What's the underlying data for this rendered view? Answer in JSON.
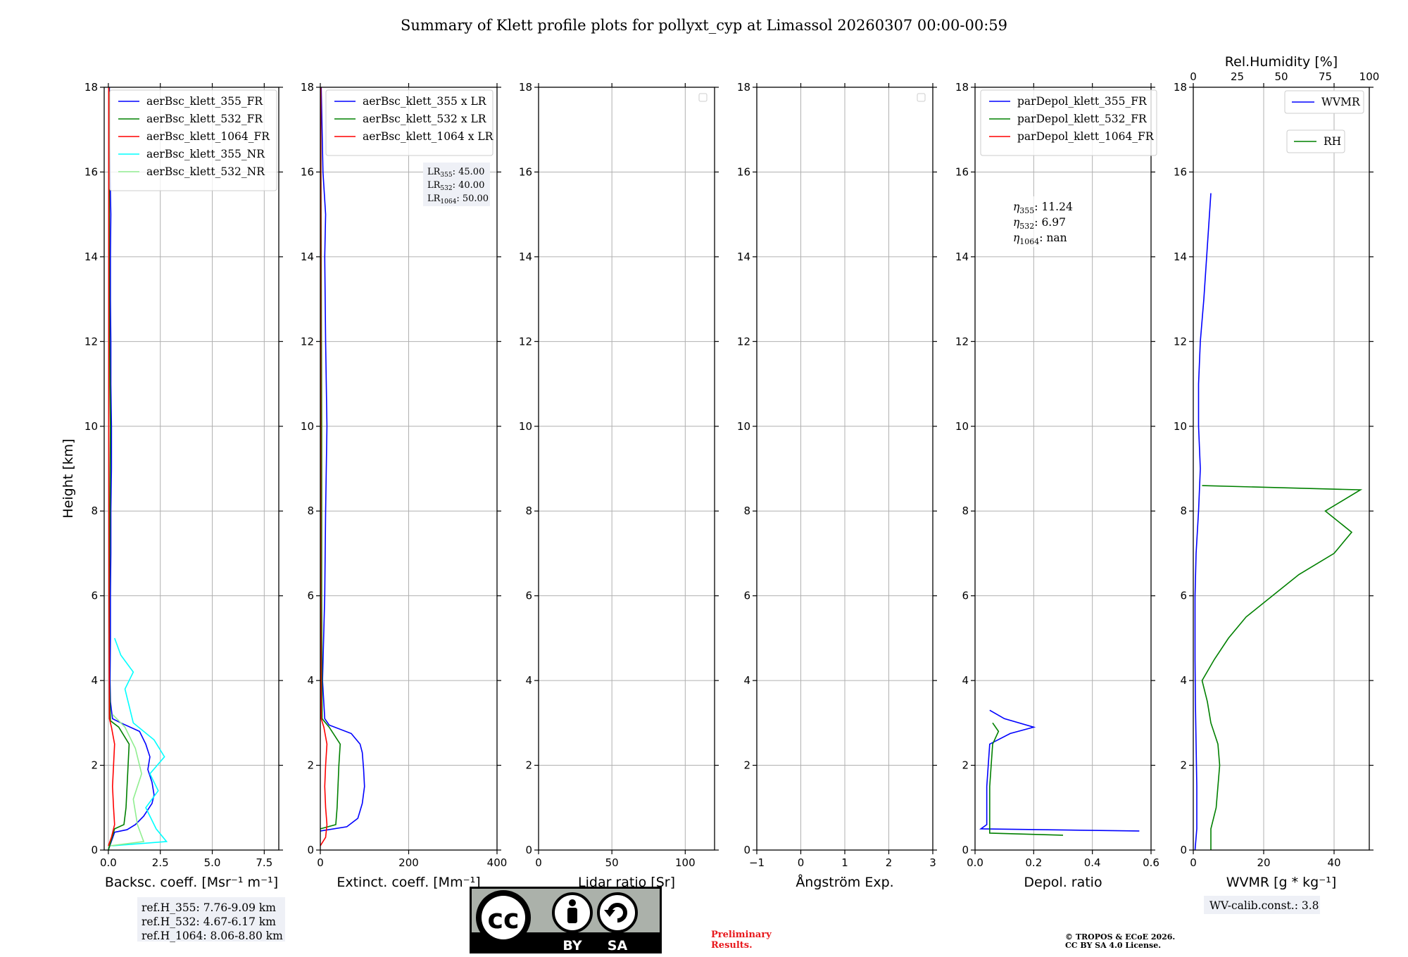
{
  "title": "Summary of Klett profile plots for pollyxt_cyp at Limassol 20260307 00:00-00:59",
  "colors": {
    "blue": "#0000ff",
    "green": "#008000",
    "red": "#ff0000",
    "cyan": "#00ffff",
    "lightgreen": "#90ee90",
    "grid": "#b0b0b0",
    "legendEdge": "#cccccc",
    "boxBg": "#eef0f6",
    "prelim": "#e8181c"
  },
  "y_axis": {
    "label": "Height [km]",
    "ylim": [
      0,
      18
    ],
    "ticks": [
      "0",
      "2",
      "4",
      "6",
      "8",
      "10",
      "12",
      "14",
      "16",
      "18"
    ]
  },
  "panels": [
    {
      "id": "backscatter",
      "xlabel": "Backsc. coeff. [Msr⁻¹ m⁻¹]",
      "xlim": [
        -0.2,
        8.2
      ],
      "xticks": [
        0,
        2.5,
        5,
        7.5
      ],
      "xtick_labels": [
        "0.0",
        "2.5",
        "5.0",
        "7.5"
      ],
      "legend": [
        "aerBsc_klett_355_FR",
        "aerBsc_klett_532_FR",
        "aerBsc_klett_1064_FR",
        "aerBsc_klett_355_NR",
        "aerBsc_klett_532_NR"
      ],
      "legend_colors": [
        "blue",
        "green",
        "red",
        "cyan",
        "lightgreen"
      ],
      "refbox": [
        "ref.H_355: 7.76-9.09 km",
        "ref.H_532: 4.67-6.17 km",
        "ref.H_1064: 8.06-8.80 km"
      ]
    },
    {
      "id": "extinction",
      "xlabel": "Extinct. coeff. [Mm⁻¹]",
      "xlim": [
        0,
        400
      ],
      "xticks": [
        0,
        200,
        400
      ],
      "xtick_labels": [
        "0",
        "200",
        "400"
      ],
      "legend": [
        "aerBsc_klett_355 x LR",
        "aerBsc_klett_532 x LR",
        "aerBsc_klett_1064 x LR"
      ],
      "legend_colors": [
        "blue",
        "green",
        "red"
      ],
      "lr_box": {
        "lines": [
          {
            "main": "LR",
            "sub": "355",
            "value": ": 45.00"
          },
          {
            "main": "LR",
            "sub": "532",
            "value": ": 40.00"
          },
          {
            "main": "LR",
            "sub": "1064",
            "value": ": 50.00"
          }
        ]
      }
    },
    {
      "id": "lidar_ratio",
      "xlabel": "Lidar ratio [Sr]",
      "xlim": [
        0,
        120
      ],
      "xticks": [
        0,
        50,
        100
      ],
      "xtick_labels": [
        "0",
        "50",
        "100"
      ]
    },
    {
      "id": "angstrom",
      "xlabel": "Ångström Exp.",
      "xlim": [
        -1,
        3
      ],
      "xticks": [
        -1,
        0,
        1,
        2,
        3
      ],
      "xtick_labels": [
        "−1",
        "0",
        "1",
        "2",
        "3"
      ]
    },
    {
      "id": "depol",
      "xlabel": "Depol. ratio",
      "xlim": [
        0,
        0.6
      ],
      "xticks": [
        0,
        0.2,
        0.4,
        0.6
      ],
      "xtick_labels": [
        "0.0",
        "0.2",
        "0.4",
        "0.6"
      ],
      "legend": [
        "parDepol_klett_355_FR",
        "parDepol_klett_532_FR",
        "parDepol_klett_1064_FR"
      ],
      "legend_colors": [
        "blue",
        "green",
        "red"
      ],
      "eta_box": {
        "lines": [
          {
            "main": "η",
            "sub": "355",
            "value": ": 11.24"
          },
          {
            "main": "η",
            "sub": "532",
            "value": ": 6.97"
          },
          {
            "main": "η",
            "sub": "1064",
            "value": ": nan"
          }
        ]
      }
    },
    {
      "id": "wvmr",
      "xlabel": "WVMR [g * kg⁻¹]",
      "xlim": [
        0,
        50
      ],
      "xticks": [
        0,
        20,
        40
      ],
      "xtick_labels": [
        "0",
        "20",
        "40"
      ],
      "top_label": "Rel.Humidity [%]",
      "top_xlim": [
        0,
        100
      ],
      "top_ticks": [
        0,
        25,
        50,
        75,
        100
      ],
      "top_tick_labels": [
        "0",
        "25",
        "50",
        "75",
        "100"
      ],
      "legend_wvmr": "WVMR",
      "legend_rh": "RH",
      "calib": "WV-calib.const.: 3.8"
    }
  ],
  "footer": {
    "badge_cc": "cc",
    "badge_by": "BY",
    "badge_sa": "SA",
    "preliminary": [
      "Preliminary",
      "Results."
    ],
    "copyright": [
      "© TROPOS & ECoE 2026.",
      "CC BY SA 4.0 License."
    ]
  },
  "chart_data": {
    "type": "line",
    "title": "Summary of Klett profile plots for pollyxt_cyp at Limassol 20260307 00:00-00:59",
    "y_unit": "km",
    "series": [
      {
        "panel": "backscatter",
        "name": "aerBsc_klett_355_FR",
        "color": "blue",
        "points": [
          [
            0,
            0
          ],
          [
            0.3,
            0.42
          ],
          [
            0.9,
            0.48
          ],
          [
            1.3,
            0.6
          ],
          [
            1.7,
            0.8
          ],
          [
            2.1,
            1.1
          ],
          [
            2.2,
            1.3
          ],
          [
            2.1,
            1.6
          ],
          [
            1.9,
            1.9
          ],
          [
            2.0,
            2.2
          ],
          [
            1.8,
            2.5
          ],
          [
            1.5,
            2.8
          ],
          [
            0.6,
            3.0
          ],
          [
            0.2,
            3.1
          ],
          [
            0.1,
            3.5
          ],
          [
            0.08,
            4
          ],
          [
            0.1,
            5
          ],
          [
            0.1,
            6
          ],
          [
            0.12,
            7
          ],
          [
            0.12,
            8
          ],
          [
            0.15,
            9
          ],
          [
            0.15,
            10
          ],
          [
            0.12,
            11
          ],
          [
            0.12,
            12
          ],
          [
            0.1,
            13
          ],
          [
            0.1,
            14
          ],
          [
            0.12,
            15
          ],
          [
            0.08,
            16
          ],
          [
            0.05,
            17
          ],
          [
            0.05,
            18
          ]
        ]
      },
      {
        "panel": "backscatter",
        "name": "aerBsc_klett_532_FR",
        "color": "green",
        "points": [
          [
            0,
            0
          ],
          [
            0.3,
            0.5
          ],
          [
            0.75,
            0.6
          ],
          [
            0.85,
            1.0
          ],
          [
            0.9,
            1.5
          ],
          [
            0.95,
            2.0
          ],
          [
            1.0,
            2.5
          ],
          [
            0.5,
            2.9
          ],
          [
            0.1,
            3.05
          ],
          [
            0.05,
            4
          ],
          [
            0.05,
            6
          ],
          [
            0.08,
            8
          ],
          [
            0.1,
            10
          ],
          [
            0.06,
            12
          ],
          [
            0.05,
            14
          ],
          [
            0.05,
            16
          ],
          [
            0.03,
            18
          ]
        ]
      },
      {
        "panel": "backscatter",
        "name": "aerBsc_klett_1064_FR",
        "color": "red",
        "points": [
          [
            0,
            0.1
          ],
          [
            0.15,
            0.3
          ],
          [
            0.3,
            0.6
          ],
          [
            0.25,
            1.0
          ],
          [
            0.2,
            1.5
          ],
          [
            0.25,
            2.0
          ],
          [
            0.3,
            2.5
          ],
          [
            0.15,
            2.9
          ],
          [
            0.05,
            3.1
          ],
          [
            0.03,
            6
          ],
          [
            0.02,
            10
          ],
          [
            0.02,
            14
          ],
          [
            0.02,
            18
          ]
        ]
      },
      {
        "panel": "backscatter",
        "name": "aerBsc_klett_355_NR",
        "color": "cyan",
        "points": [
          [
            0.2,
            0.1
          ],
          [
            2.8,
            0.2
          ],
          [
            2.3,
            0.5
          ],
          [
            1.8,
            1.0
          ],
          [
            2.4,
            1.4
          ],
          [
            2.0,
            1.8
          ],
          [
            2.7,
            2.2
          ],
          [
            2.2,
            2.6
          ],
          [
            1.2,
            3.0
          ],
          [
            1.0,
            3.4
          ],
          [
            0.8,
            3.8
          ],
          [
            1.2,
            4.2
          ],
          [
            0.6,
            4.6
          ],
          [
            0.3,
            5.0
          ]
        ]
      },
      {
        "panel": "backscatter",
        "name": "aerBsc_klett_532_NR",
        "color": "lightgreen",
        "points": [
          [
            0.1,
            0.1
          ],
          [
            1.7,
            0.2
          ],
          [
            1.4,
            0.6
          ],
          [
            1.2,
            1.2
          ],
          [
            1.6,
            1.8
          ],
          [
            1.3,
            2.4
          ],
          [
            0.8,
            2.9
          ],
          [
            0.2,
            3.2
          ]
        ]
      },
      {
        "panel": "extinction",
        "name": "aerBsc_klett_355 x LR",
        "color": "blue",
        "points": [
          [
            0,
            0.45
          ],
          [
            60,
            0.55
          ],
          [
            85,
            0.75
          ],
          [
            95,
            1.1
          ],
          [
            100,
            1.5
          ],
          [
            98,
            1.9
          ],
          [
            95,
            2.3
          ],
          [
            90,
            2.5
          ],
          [
            70,
            2.75
          ],
          [
            20,
            2.95
          ],
          [
            10,
            3.1
          ],
          [
            5,
            4
          ],
          [
            10,
            6
          ],
          [
            12,
            8
          ],
          [
            15,
            10
          ],
          [
            12,
            12
          ],
          [
            10,
            14
          ],
          [
            12,
            15
          ],
          [
            6,
            16
          ],
          [
            2,
            18
          ]
        ]
      },
      {
        "panel": "extinction",
        "name": "aerBsc_klett_532 x LR",
        "color": "green",
        "points": [
          [
            0,
            0.5
          ],
          [
            35,
            0.6
          ],
          [
            38,
            1.0
          ],
          [
            40,
            1.5
          ],
          [
            42,
            2.0
          ],
          [
            45,
            2.5
          ],
          [
            20,
            2.9
          ],
          [
            4,
            3.1
          ],
          [
            3,
            6
          ],
          [
            3,
            10
          ],
          [
            2,
            14
          ],
          [
            1,
            18
          ]
        ]
      },
      {
        "panel": "extinction",
        "name": "aerBsc_klett_1064 x LR",
        "color": "red",
        "points": [
          [
            0,
            0.1
          ],
          [
            12,
            0.3
          ],
          [
            15,
            0.6
          ],
          [
            12,
            1.0
          ],
          [
            10,
            1.5
          ],
          [
            12,
            2.0
          ],
          [
            15,
            2.5
          ],
          [
            8,
            2.9
          ],
          [
            2,
            3.1
          ],
          [
            1,
            6
          ],
          [
            1,
            10
          ],
          [
            1,
            14
          ],
          [
            1,
            18
          ]
        ]
      },
      {
        "panel": "depol",
        "name": "parDepol_klett_355_FR",
        "color": "blue",
        "points": [
          [
            0.56,
            0.45
          ],
          [
            0.02,
            0.5
          ],
          [
            0.04,
            0.6
          ],
          [
            0.04,
            1.0
          ],
          [
            0.04,
            1.5
          ],
          [
            0.045,
            2.0
          ],
          [
            0.05,
            2.5
          ],
          [
            0.12,
            2.75
          ],
          [
            0.2,
            2.9
          ],
          [
            0.1,
            3.1
          ],
          [
            0.05,
            3.3
          ]
        ]
      },
      {
        "panel": "depol",
        "name": "parDepol_klett_532_FR",
        "color": "green",
        "points": [
          [
            0.3,
            0.35
          ],
          [
            0.05,
            0.4
          ],
          [
            0.05,
            1.0
          ],
          [
            0.05,
            1.5
          ],
          [
            0.055,
            2.0
          ],
          [
            0.06,
            2.5
          ],
          [
            0.08,
            2.8
          ],
          [
            0.06,
            3.0
          ]
        ]
      },
      {
        "panel": "wvmr",
        "name": "WVMR",
        "color": "blue",
        "x_unit": "g/kg",
        "points": [
          [
            0.5,
            0
          ],
          [
            1.0,
            0.5
          ],
          [
            1.0,
            1.5
          ],
          [
            0.8,
            2.5
          ],
          [
            0.6,
            3.5
          ],
          [
            0.5,
            4.5
          ],
          [
            0.5,
            6
          ],
          [
            0.8,
            7
          ],
          [
            1.5,
            8
          ],
          [
            2.0,
            9
          ],
          [
            1.5,
            10
          ],
          [
            1.5,
            11
          ],
          [
            2.0,
            12
          ],
          [
            3.0,
            13
          ],
          [
            5.0,
            15.5
          ]
        ]
      },
      {
        "panel": "wvmr",
        "name": "RH",
        "color": "green",
        "x_unit": "%",
        "points": [
          [
            10,
            0
          ],
          [
            10,
            0.5
          ],
          [
            13,
            1.0
          ],
          [
            14,
            1.5
          ],
          [
            15,
            2.0
          ],
          [
            14,
            2.5
          ],
          [
            10,
            3.0
          ],
          [
            8,
            3.5
          ],
          [
            5,
            4.0
          ],
          [
            12,
            4.5
          ],
          [
            20,
            5.0
          ],
          [
            30,
            5.5
          ],
          [
            45,
            6.0
          ],
          [
            60,
            6.5
          ],
          [
            80,
            7.0
          ],
          [
            90,
            7.5
          ],
          [
            75,
            8.0
          ],
          [
            95,
            8.5
          ],
          [
            5,
            8.6
          ]
        ]
      }
    ]
  }
}
